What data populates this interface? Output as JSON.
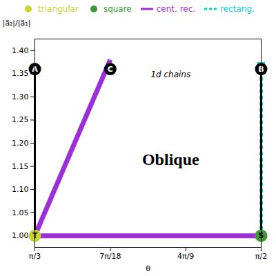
{
  "chart_data": {
    "type": "line",
    "xlabel": "θ",
    "ylabel": "|a⃗₂|/|a⃗₁|",
    "xlim": [
      1.0471975511965976,
      1.5707963267948966
    ],
    "ylim": [
      0.975,
      1.425
    ],
    "xticks": [
      {
        "value": 1.0471975511965976,
        "label": "π/3"
      },
      {
        "value": 1.2217304763960306,
        "label": "7π/18"
      },
      {
        "value": 1.3962634015954636,
        "label": "4π/9"
      },
      {
        "value": 1.5707963267948966,
        "label": "π/2"
      }
    ],
    "yticks": [
      {
        "value": 1.0,
        "label": "1.00"
      },
      1.05,
      {
        "value": 1.1,
        "label": "1.10"
      },
      1.15,
      {
        "value": 1.2,
        "label": "1.20"
      },
      1.25,
      {
        "value": 1.3,
        "label": "1.30"
      },
      1.35,
      {
        "value": 1.4,
        "label": "1.40"
      }
    ],
    "grid": false,
    "legend": "top",
    "annotations": [
      {
        "text": "1d chains"
      },
      {
        "text": "Oblique"
      }
    ],
    "series": [
      {
        "name": "triangular",
        "type": "scatter",
        "marker": "circle",
        "color": "#c8d42e",
        "x": [
          1.0471975511965976
        ],
        "values": [
          1.0
        ],
        "labels": [
          "T"
        ]
      },
      {
        "name": "square",
        "type": "scatter",
        "marker": "circle",
        "color": "#3d9933",
        "x": [
          1.5707963267948966
        ],
        "values": [
          1.0
        ],
        "labels": [
          "S"
        ]
      },
      {
        "name": "cent. rec.",
        "type": "line",
        "line_style": "solid",
        "color": "#9b30d9",
        "x": [
          1.5707963267948966,
          1.0471975511965976,
          1.2217304763960306
        ],
        "values": [
          1.0,
          1.0,
          1.38
        ]
      },
      {
        "name": "rectang.",
        "type": "line",
        "line_style": "dashed",
        "color": "#00d4d4",
        "x": [
          1.5707963267948966,
          1.5707963267948966
        ],
        "values": [
          1.0,
          1.36
        ]
      },
      {
        "type": "line",
        "line_style": "solid",
        "color": "#000000",
        "x": [
          1.0471975511965976,
          1.0471975511965976
        ],
        "values": [
          1.0,
          1.36
        ]
      },
      {
        "type": "line",
        "line_style": "solid",
        "color": "#000000",
        "x": [
          1.5707963267948966,
          1.5707963267948966
        ],
        "values": [
          1.0,
          1.36
        ]
      },
      {
        "type": "line",
        "line_style": "solid",
        "color": "#00d4d4",
        "x": [
          1.5707963267948966,
          1.5707963267948966
        ],
        "values": [
          1.36,
          1.375
        ]
      },
      {
        "type": "scatter",
        "marker": "circle",
        "color": "#000000",
        "x": [
          1.0471975511965976,
          1.5707963267948966,
          1.2217304763960306
        ],
        "values": [
          1.36,
          1.36,
          1.36
        ],
        "labels": [
          "A",
          "B",
          "C"
        ]
      }
    ]
  }
}
